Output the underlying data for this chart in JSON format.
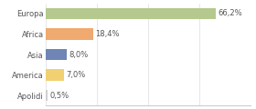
{
  "categories": [
    "Europa",
    "Africa",
    "Asia",
    "America",
    "Apolidi"
  ],
  "values": [
    66.2,
    18.4,
    8.0,
    7.0,
    0.5
  ],
  "labels": [
    "66,2%",
    "18,4%",
    "8,0%",
    "7,0%",
    "0,5%"
  ],
  "bar_colors": [
    "#b5c98e",
    "#f0a96e",
    "#6e85b5",
    "#f0d070",
    "#d0d0d0"
  ],
  "background_color": "#ffffff",
  "xlim": [
    0,
    80
  ],
  "label_fontsize": 6.0,
  "category_fontsize": 6.0,
  "bar_height": 0.55
}
